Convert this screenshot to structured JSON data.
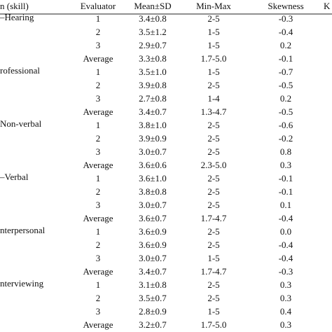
{
  "table": {
    "header": [
      "n (skill)",
      "Evaluator",
      "Mean±SD",
      "Min-Max",
      "Skewness",
      "K"
    ],
    "groups": [
      {
        "label": "–Hearing",
        "rows": [
          [
            "1",
            "3.4±0.8",
            "2-5",
            "-0.3"
          ],
          [
            "2",
            "3.5±1.2",
            "1-5",
            "-0.4"
          ],
          [
            "3",
            "2.9±0.7",
            "1-5",
            "0.2"
          ],
          [
            "Average",
            "3.3±0.8",
            "1.7-5.0",
            "-0.1"
          ]
        ]
      },
      {
        "label": "rofessional",
        "rows": [
          [
            "1",
            "3.5±1.0",
            "1-5",
            "-0.7"
          ],
          [
            "2",
            "3.9±0.8",
            "2-5",
            "-0.5"
          ],
          [
            "3",
            "2.7±0.8",
            "1-4",
            "0.2"
          ],
          [
            "Average",
            "3.4±0.7",
            "1.3-4.7",
            "-0.5"
          ]
        ]
      },
      {
        "label": "Non-verbal",
        "rows": [
          [
            "1",
            "3.8±1.0",
            "2-5",
            "-0.6"
          ],
          [
            "2",
            "3.9±0.9",
            "2-5",
            "-0.2"
          ],
          [
            "3",
            "3.0±0.7",
            "2-5",
            "0.8"
          ],
          [
            "Average",
            "3.6±0.6",
            "2.3-5.0",
            "0.3"
          ]
        ]
      },
      {
        "label": "–Verbal",
        "rows": [
          [
            "1",
            "3.6±1.0",
            "2-5",
            "-0.1"
          ],
          [
            "2",
            "3.8±0.8",
            "2-5",
            "-0.1"
          ],
          [
            "3",
            "3.0±0.7",
            "2-5",
            "0.1"
          ],
          [
            "Average",
            "3.6±0.7",
            "1.7-4.7",
            "-0.4"
          ]
        ]
      },
      {
        "label": "nterpersonal",
        "rows": [
          [
            "1",
            "3.6±0.9",
            "2-5",
            "0.0"
          ],
          [
            "2",
            "3.6±0.9",
            "2-5",
            "-0.4"
          ],
          [
            "3",
            "3.0±0.7",
            "1-5",
            "-0.4"
          ],
          [
            "Average",
            "3.4±0.7",
            "1.7-4.7",
            "-0.3"
          ]
        ]
      },
      {
        "label": "nterviewing",
        "rows": [
          [
            "1",
            "3.1±0.8",
            "2-5",
            "0.3"
          ],
          [
            "2",
            "3.5±0.7",
            "2-5",
            "0.3"
          ],
          [
            "3",
            "2.8±0.9",
            "1-5",
            "0.4"
          ],
          [
            "Average",
            "3.2±0.7",
            "1.7-5.0",
            "0.3"
          ]
        ]
      }
    ]
  }
}
